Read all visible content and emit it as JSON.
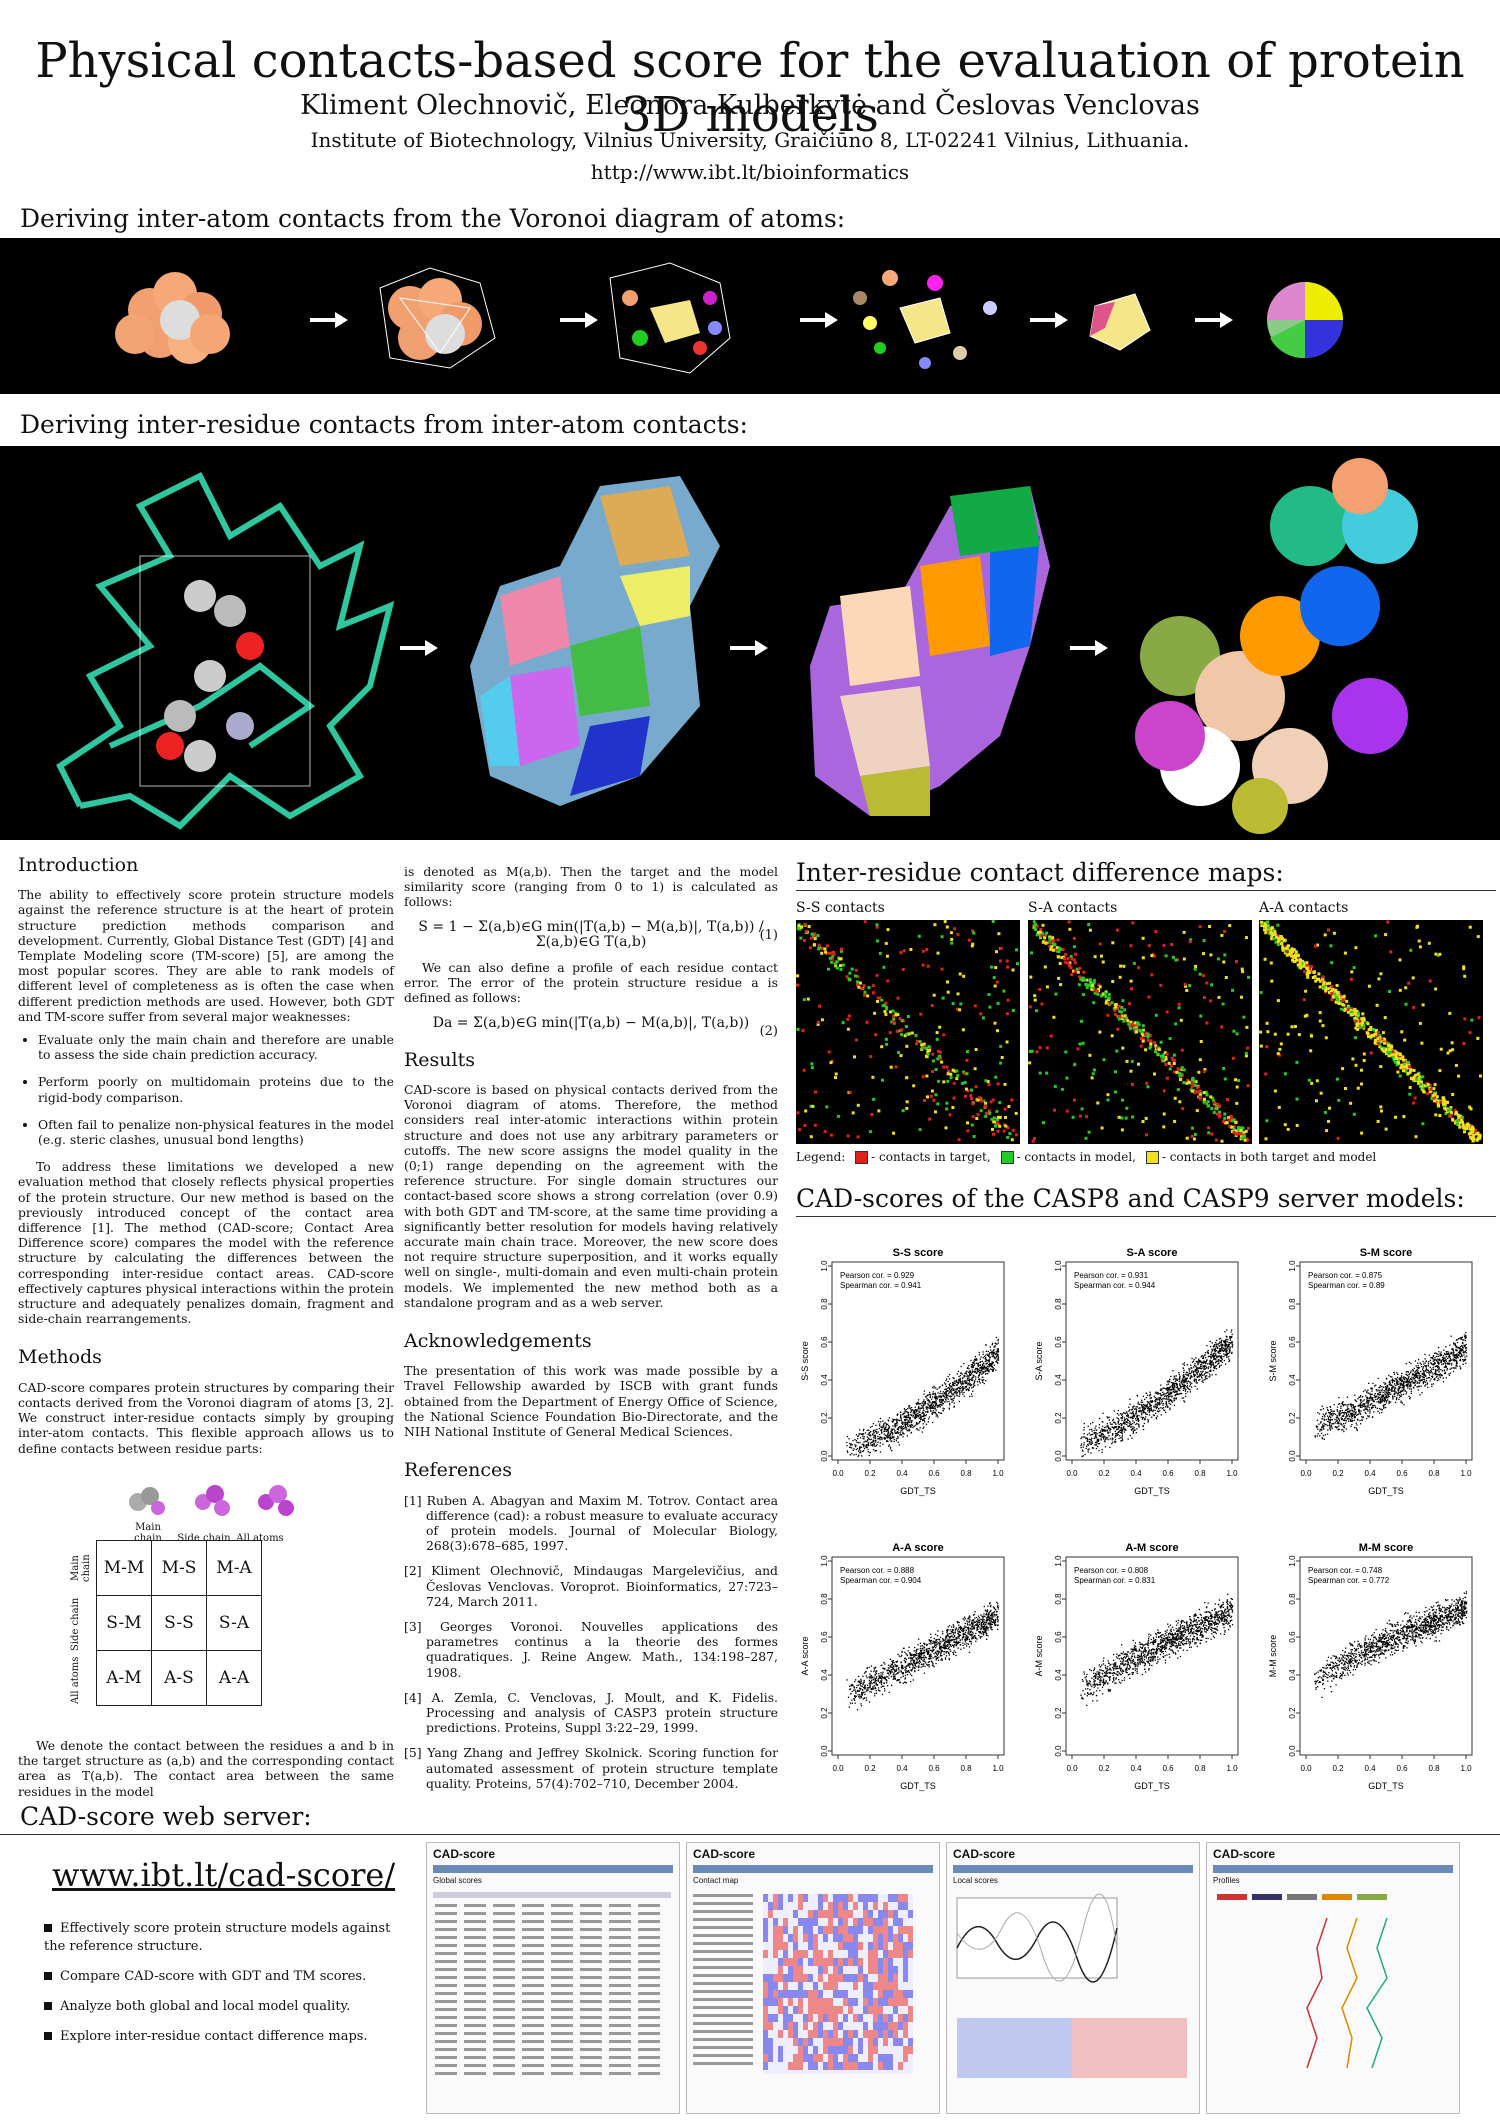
{
  "header": {
    "title": "Physical contacts-based score for the evaluation of protein 3D models",
    "authors": "Kliment Olechnovič, Eleonora Kulberkytė and Česlovas Venclovas",
    "affiliation": "Institute of Biotechnology, Vilnius University, Graičiūno 8, LT-02241 Vilnius, Lithuania.",
    "url": "http://www.ibt.lt/bioinformatics"
  },
  "sections": {
    "atom_contacts": "Deriving inter-atom contacts from the Voronoi diagram of atoms:",
    "residue_contacts": "Deriving inter-residue contacts from inter-atom contacts:",
    "web_server": "CAD-score web server:"
  },
  "intro": {
    "heading": "Introduction",
    "p1": "The ability to effectively score protein structure models against the reference structure is at the heart of protein structure prediction methods comparison and development. Currently, Global Distance Test (GDT) [4] and Template Modeling score (TM-score) [5], are among the most popular scores. They are able to rank models of different level of completeness as is often the case when different prediction methods are used. However, both GDT and TM-score suffer from several major weaknesses:",
    "bullets": [
      "Evaluate only the main chain and therefore are unable to assess the side chain prediction accuracy.",
      "Perform poorly on multidomain proteins due to the rigid-body comparison.",
      "Often fail to penalize non-physical features in the model (e.g. steric clashes, unusual bond lengths)"
    ],
    "p2": "To address these limitations we developed a new evaluation method that closely reflects physical properties of the protein structure. Our new method is based on the previously introduced concept of the contact area difference [1]. The method (CAD-score; Contact Area Difference score) compares the model with the reference structure by calculating the differences between the corresponding inter-residue contact areas. CAD-score effectively captures physical interactions within the protein structure and adequately penalizes domain, fragment and side-chain rearrangements."
  },
  "methods": {
    "heading": "Methods",
    "p1": "CAD-score compares protein structures by comparing their contacts derived from the Voronoi diagram of atoms [3, 2]. We construct inter-residue contacts simply by grouping inter-atom contacts. This flexible approach allows us to define contacts between residue parts:",
    "col_labels": [
      "Main chain",
      "Side chain",
      "All atoms"
    ],
    "row_labels": [
      "Main chain",
      "Side chain",
      "All atoms"
    ],
    "grid": [
      [
        "M-M",
        "M-S",
        "M-A"
      ],
      [
        "S-M",
        "S-S",
        "S-A"
      ],
      [
        "A-M",
        "A-S",
        "A-A"
      ]
    ],
    "p2": "We denote the contact between the residues a and b in the target structure as (a,b) and the corresponding contact area as T(a,b). The contact area between the same residues in the model"
  },
  "col2": {
    "p1": "is denoted as M(a,b). Then the target and the model similarity score (ranging from 0 to 1) is calculated as follows:",
    "eq1": "S = 1 − Σ(a,b)∈G min(|T(a,b) − M(a,b)|, T(a,b)) / Σ(a,b)∈G T(a,b)",
    "eq1_num": "(1)",
    "p2": "We can also define a profile of each residue contact error. The error of the protein structure residue a is defined as follows:",
    "eq2": "Da = Σ(a,b)∈G min(|T(a,b) − M(a,b)|, T(a,b))",
    "eq2_num": "(2)",
    "results_heading": "Results",
    "results": "CAD-score is based on physical contacts derived from the Voronoi diagram of atoms. Therefore, the method considers real inter-atomic interactions within protein structure and does not use any arbitrary parameters or cutoffs. The new score assigns the model quality in the (0;1) range depending on the agreement with the reference structure. For single domain structures our contact-based score shows a strong correlation (over 0.9) with both GDT and TM-score, at the same time providing a significantly better resolution for models having relatively accurate main chain trace. Moreover, the new score does not require structure superposition, and it works equally well on single-, multi-domain and even multi-chain protein models. We implemented the new method both as a standalone program and as a web server.",
    "ack_heading": "Acknowledgements",
    "ack": "The presentation of this work was made possible by a Travel Fellowship awarded by ISCB with grant funds obtained from the Department of Energy Office of Science, the National Science Foundation Bio-Directorate, and the NIH National Institute of General Medical Sciences.",
    "refs_heading": "References",
    "refs": [
      "[1] Ruben A. Abagyan and Maxim M. Totrov. Contact area difference (cad): a robust measure to evaluate accuracy of protein models. Journal of Molecular Biology, 268(3):678–685, 1997.",
      "[2] Kliment Olechnovič, Mindaugas Margelevičius, and Česlovas Venclovas. Voroprot. Bioinformatics, 27:723–724, March 2011.",
      "[3] Georges Voronoi. Nouvelles applications des parametres continus a la theorie des formes quadratiques. J. Reine Angew. Math., 134:198–287, 1908.",
      "[4] A. Zemla, C. Venclovas, J. Moult, and K. Fidelis. Processing and analysis of CASP3 protein structure predictions. Proteins, Suppl 3:22–29, 1999.",
      "[5] Yang Zhang and Jeffrey Skolnick. Scoring function for automated assessment of protein structure template quality. Proteins, 57(4):702–710, December 2004."
    ]
  },
  "maps": {
    "heading": "Inter-residue contact difference maps:",
    "labels": [
      "S-S contacts",
      "S-A contacts",
      "A-A contacts"
    ],
    "legend_prefix": "Legend:",
    "legend": [
      "- contacts in target,",
      "- contacts in model,",
      "- contacts in both target and model"
    ],
    "colors": [
      "#e0201a",
      "#22cc22",
      "#f0e020"
    ]
  },
  "casp": {
    "heading": "CAD-scores of the CASP8 and CASP9 server models:",
    "xlabel": "GDT_TS",
    "ticks": [
      "0.0",
      "0.2",
      "0.4",
      "0.6",
      "0.8",
      "1.0"
    ]
  },
  "chart_data": [
    {
      "type": "scatter",
      "title": "S-S score",
      "xlabel": "GDT_TS",
      "ylabel": "S-S score",
      "xlim": [
        0,
        1
      ],
      "ylim": [
        0,
        1
      ],
      "pearson": "Pearson cor. = 0.929",
      "spearman": "Spearman cor. = 0.941",
      "fit": [
        [
          0.0,
          0.03
        ],
        [
          0.3,
          0.12
        ],
        [
          0.6,
          0.28
        ],
        [
          0.9,
          0.47
        ],
        [
          1.0,
          0.55
        ]
      ]
    },
    {
      "type": "scatter",
      "title": "S-A score",
      "xlabel": "GDT_TS",
      "ylabel": "S-A score",
      "xlim": [
        0,
        1
      ],
      "ylim": [
        0,
        1
      ],
      "pearson": "Pearson cor. = 0.931",
      "spearman": "Spearman cor. = 0.944",
      "fit": [
        [
          0.0,
          0.05
        ],
        [
          0.3,
          0.16
        ],
        [
          0.6,
          0.33
        ],
        [
          0.9,
          0.53
        ],
        [
          1.0,
          0.6
        ]
      ]
    },
    {
      "type": "scatter",
      "title": "S-M score",
      "xlabel": "GDT_TS",
      "ylabel": "S-M score",
      "xlim": [
        0,
        1
      ],
      "ylim": [
        0,
        1
      ],
      "pearson": "Pearson cor. = 0.875",
      "spearman": "Spearman cor. = 0.89",
      "fit": [
        [
          0.0,
          0.14
        ],
        [
          0.3,
          0.24
        ],
        [
          0.6,
          0.38
        ],
        [
          0.9,
          0.52
        ],
        [
          1.0,
          0.57
        ]
      ]
    },
    {
      "type": "scatter",
      "title": "A-A score",
      "xlabel": "GDT_TS",
      "ylabel": "A-A score",
      "xlim": [
        0,
        1
      ],
      "ylim": [
        0,
        1
      ],
      "pearson": "Pearson cor. = 0.888",
      "spearman": "Spearman cor. = 0.904",
      "fit": [
        [
          0.0,
          0.28
        ],
        [
          0.3,
          0.4
        ],
        [
          0.6,
          0.54
        ],
        [
          0.9,
          0.67
        ],
        [
          1.0,
          0.72
        ]
      ]
    },
    {
      "type": "scatter",
      "title": "A-M score",
      "xlabel": "GDT_TS",
      "ylabel": "A-M score",
      "xlim": [
        0,
        1
      ],
      "ylim": [
        0,
        1
      ],
      "pearson": "Pearson cor. = 0.808",
      "spearman": "Spearman cor. = 0.831",
      "fit": [
        [
          0.0,
          0.3
        ],
        [
          0.3,
          0.45
        ],
        [
          0.6,
          0.58
        ],
        [
          0.9,
          0.7
        ],
        [
          1.0,
          0.74
        ]
      ]
    },
    {
      "type": "scatter",
      "title": "M-M score",
      "xlabel": "GDT_TS",
      "ylabel": "M-M score",
      "xlim": [
        0,
        1
      ],
      "ylim": [
        0,
        1
      ],
      "pearson": "Pearson cor. = 0.748",
      "spearman": "Spearman cor. = 0.772",
      "fit": [
        [
          0.0,
          0.35
        ],
        [
          0.3,
          0.5
        ],
        [
          0.6,
          0.62
        ],
        [
          0.9,
          0.72
        ],
        [
          1.0,
          0.76
        ]
      ]
    }
  ],
  "web": {
    "link": "www.ibt.lt/cad-score/",
    "bullets": [
      "Effectively score protein structure models against the reference structure.",
      "Compare CAD-score with GDT and TM scores.",
      "Analyze both global and local model quality.",
      "Explore inter-residue contact difference maps."
    ],
    "screens": [
      {
        "logo": "CAD-score",
        "tab": "Global scores"
      },
      {
        "logo": "CAD-score",
        "tab": "Contact map"
      },
      {
        "logo": "CAD-score",
        "tab": "Local scores"
      },
      {
        "logo": "CAD-score",
        "tab": "Profiles"
      }
    ]
  }
}
